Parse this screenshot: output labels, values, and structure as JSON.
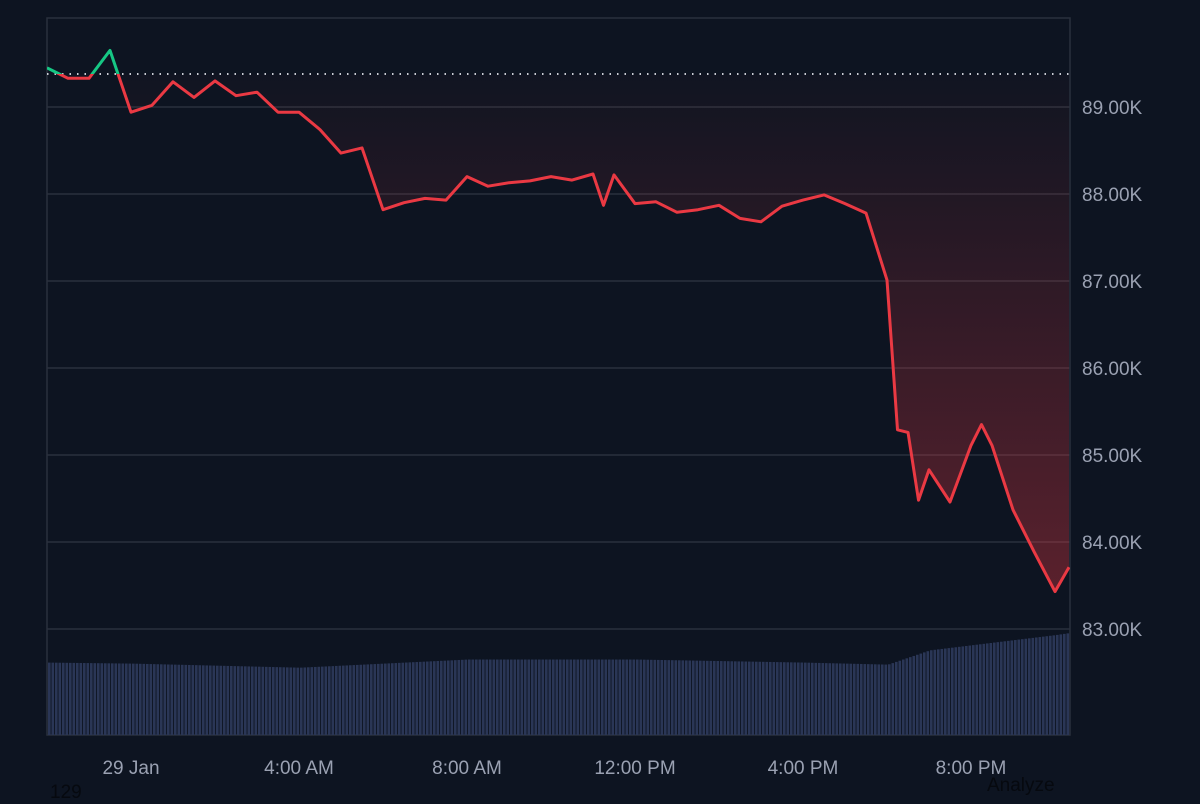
{
  "chart_data": {
    "type": "line",
    "title": "",
    "xlabel": "",
    "ylabel": "",
    "y_ticks": [
      "89.00K",
      "88.00K",
      "87.00K",
      "86.00K",
      "85.00K",
      "84.00K",
      "83.00K"
    ],
    "y_tick_values": [
      89000,
      88000,
      87000,
      86000,
      85000,
      84000,
      83000
    ],
    "x_ticks": [
      "29 Jan",
      "4:00 AM",
      "8:00 AM",
      "12:00 PM",
      "4:00 PM",
      "8:00 PM"
    ],
    "x_tick_times": [
      "29 Jan 00:00",
      "29 Jan 04:00",
      "29 Jan 08:00",
      "29 Jan 12:00",
      "29 Jan 16:00",
      "29 Jan 20:00"
    ],
    "x_range": [
      "28 Jan 22:00",
      "29 Jan 22:20"
    ],
    "y_range": [
      81750,
      90000
    ],
    "grid": true,
    "baseline_price": 89380,
    "colors": {
      "above_baseline": "#16c784",
      "below_baseline": "#ea3943",
      "volume": "#2a3656",
      "grid": "#2a303d",
      "background": "#0d1421"
    },
    "series": [
      {
        "points": [
          [
            "28 Jan 22:00",
            89450
          ],
          [
            "28 Jan 22:30",
            89330
          ],
          [
            "28 Jan 23:00",
            89330
          ],
          [
            "28 Jan 23:30",
            89650
          ],
          [
            "29 Jan 00:00",
            88940
          ],
          [
            "29 Jan 00:30",
            89020
          ],
          [
            "29 Jan 01:00",
            89290
          ],
          [
            "29 Jan 01:30",
            89110
          ],
          [
            "29 Jan 02:00",
            89300
          ],
          [
            "29 Jan 02:30",
            89130
          ],
          [
            "29 Jan 03:00",
            89170
          ],
          [
            "29 Jan 03:30",
            88940
          ],
          [
            "29 Jan 04:00",
            88940
          ],
          [
            "29 Jan 04:30",
            88740
          ],
          [
            "29 Jan 05:00",
            88470
          ],
          [
            "29 Jan 05:30",
            88530
          ],
          [
            "29 Jan 06:00",
            87820
          ],
          [
            "29 Jan 06:30",
            87900
          ],
          [
            "29 Jan 07:00",
            87950
          ],
          [
            "29 Jan 07:30",
            87930
          ],
          [
            "29 Jan 08:00",
            88200
          ],
          [
            "29 Jan 08:30",
            88090
          ],
          [
            "29 Jan 09:00",
            88130
          ],
          [
            "29 Jan 09:30",
            88150
          ],
          [
            "29 Jan 10:00",
            88200
          ],
          [
            "29 Jan 10:30",
            88160
          ],
          [
            "29 Jan 11:00",
            88230
          ],
          [
            "29 Jan 11:15",
            87870
          ],
          [
            "29 Jan 11:30",
            88220
          ],
          [
            "29 Jan 12:00",
            87890
          ],
          [
            "29 Jan 12:30",
            87910
          ],
          [
            "29 Jan 13:00",
            87790
          ],
          [
            "29 Jan 13:30",
            87820
          ],
          [
            "29 Jan 14:00",
            87870
          ],
          [
            "29 Jan 14:30",
            87720
          ],
          [
            "29 Jan 15:00",
            87680
          ],
          [
            "29 Jan 15:30",
            87860
          ],
          [
            "29 Jan 16:00",
            87930
          ],
          [
            "29 Jan 16:30",
            87990
          ],
          [
            "29 Jan 17:00",
            87890
          ],
          [
            "29 Jan 17:30",
            87780
          ],
          [
            "29 Jan 18:00",
            87010
          ],
          [
            "29 Jan 18:15",
            85290
          ],
          [
            "29 Jan 18:30",
            85260
          ],
          [
            "29 Jan 18:45",
            84480
          ],
          [
            "29 Jan 19:00",
            84830
          ],
          [
            "29 Jan 19:30",
            84460
          ],
          [
            "29 Jan 20:00",
            85110
          ],
          [
            "29 Jan 20:15",
            85350
          ],
          [
            "29 Jan 20:30",
            85110
          ],
          [
            "29 Jan 21:00",
            84370
          ],
          [
            "29 Jan 21:30",
            83890
          ],
          [
            "29 Jan 22:00",
            83430
          ],
          [
            "29 Jan 22:20",
            83710
          ]
        ]
      }
    ],
    "volume_relative": [
      [
        "28 Jan 22:00",
        0.71
      ],
      [
        "29 Jan 00:00",
        0.7
      ],
      [
        "29 Jan 04:00",
        0.66
      ],
      [
        "29 Jan 08:00",
        0.74
      ],
      [
        "29 Jan 12:00",
        0.74
      ],
      [
        "29 Jan 16:00",
        0.71
      ],
      [
        "29 Jan 18:00",
        0.69
      ],
      [
        "29 Jan 19:00",
        0.83
      ],
      [
        "29 Jan 20:00",
        0.88
      ],
      [
        "29 Jan 21:00",
        0.93
      ],
      [
        "29 Jan 22:00",
        0.98
      ],
      [
        "29 Jan 22:20",
        1.0
      ]
    ]
  },
  "footer": {
    "left_text": "129",
    "right_text": "Analyze"
  }
}
